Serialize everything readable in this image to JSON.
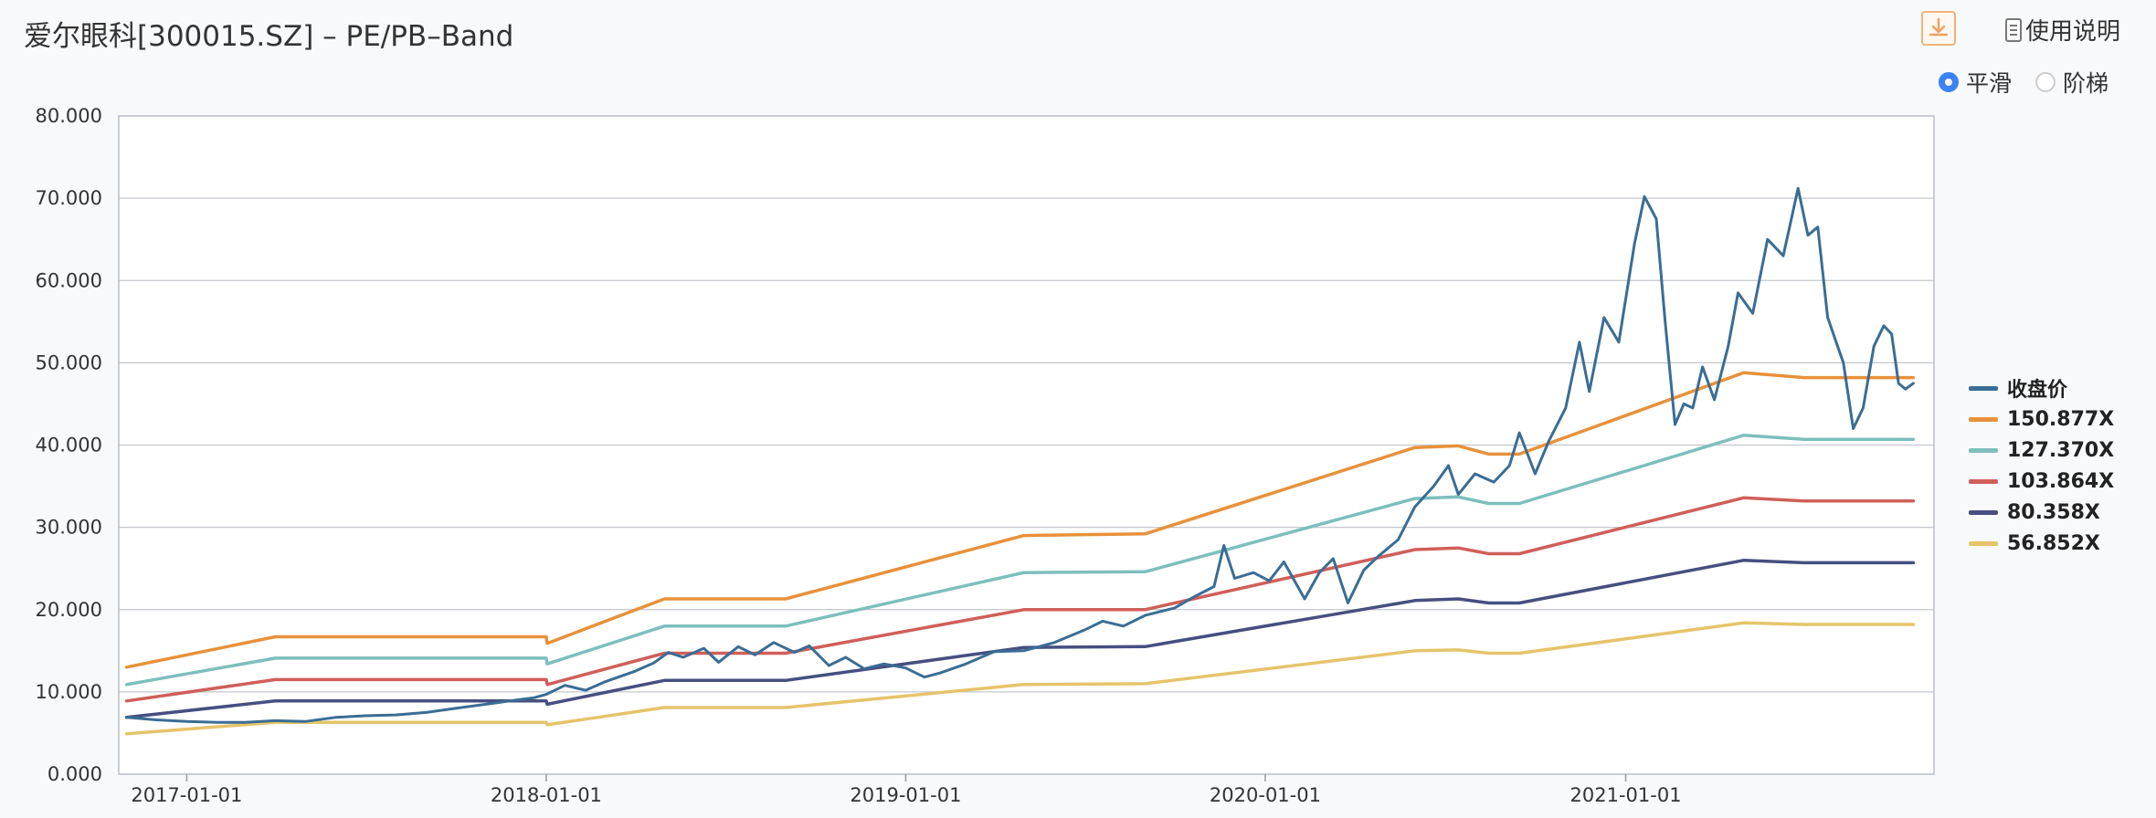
{
  "header": {
    "title": "爱尔眼科[300015.SZ] – PE/PB–Band",
    "download_icon": "download-icon",
    "help_icon": "document-icon",
    "help_label": "使用说明"
  },
  "smoothing": {
    "options": [
      "平滑",
      "阶梯"
    ],
    "selected": "平滑"
  },
  "chart_data": {
    "type": "line",
    "title": "",
    "xlabel": "",
    "ylabel": "",
    "x_range": [
      "2016-10-24",
      "2021-11-10"
    ],
    "ylim": [
      0,
      80
    ],
    "y_ticks": [
      "0.000",
      "10.000",
      "20.000",
      "30.000",
      "40.000",
      "50.000",
      "60.000",
      "70.000",
      "80.000"
    ],
    "x_ticks": [
      "2017-01-01",
      "2018-01-01",
      "2019-01-01",
      "2020-01-01",
      "2021-01-01"
    ],
    "grid": "horizontal",
    "legend_position": "right",
    "series": [
      {
        "name": "收盘价",
        "color": "#3a6d94",
        "points": [
          [
            "2016-11-01",
            6.9
          ],
          [
            "2016-12-01",
            6.6
          ],
          [
            "2017-01-01",
            6.4
          ],
          [
            "2017-02-01",
            6.3
          ],
          [
            "2017-03-01",
            6.3
          ],
          [
            "2017-04-01",
            6.5
          ],
          [
            "2017-05-01",
            6.4
          ],
          [
            "2017-06-01",
            6.9
          ],
          [
            "2017-07-01",
            7.1
          ],
          [
            "2017-08-01",
            7.2
          ],
          [
            "2017-09-01",
            7.5
          ],
          [
            "2017-10-01",
            8.0
          ],
          [
            "2017-11-01",
            8.5
          ],
          [
            "2017-12-01",
            9.0
          ],
          [
            "2017-12-20",
            9.3
          ],
          [
            "2018-01-01",
            9.7
          ],
          [
            "2018-01-20",
            10.8
          ],
          [
            "2018-02-10",
            10.2
          ],
          [
            "2018-03-01",
            11.2
          ],
          [
            "2018-04-01",
            12.5
          ],
          [
            "2018-04-20",
            13.5
          ],
          [
            "2018-05-05",
            14.8
          ],
          [
            "2018-05-20",
            14.2
          ],
          [
            "2018-06-10",
            15.3
          ],
          [
            "2018-06-25",
            13.6
          ],
          [
            "2018-07-15",
            15.5
          ],
          [
            "2018-08-01",
            14.5
          ],
          [
            "2018-08-20",
            16.0
          ],
          [
            "2018-09-10",
            14.8
          ],
          [
            "2018-09-25",
            15.6
          ],
          [
            "2018-10-15",
            13.2
          ],
          [
            "2018-11-01",
            14.2
          ],
          [
            "2018-11-20",
            12.8
          ],
          [
            "2018-12-10",
            13.4
          ],
          [
            "2019-01-01",
            12.9
          ],
          [
            "2019-01-20",
            11.8
          ],
          [
            "2019-02-05",
            12.3
          ],
          [
            "2019-03-01",
            13.3
          ],
          [
            "2019-04-01",
            14.9
          ],
          [
            "2019-05-01",
            15.0
          ],
          [
            "2019-06-01",
            16.0
          ],
          [
            "2019-07-01",
            17.5
          ],
          [
            "2019-07-20",
            18.6
          ],
          [
            "2019-08-10",
            18.0
          ],
          [
            "2019-09-01",
            19.3
          ],
          [
            "2019-10-01",
            20.2
          ],
          [
            "2019-10-20",
            21.5
          ],
          [
            "2019-11-10",
            22.8
          ],
          [
            "2019-11-20",
            27.8
          ],
          [
            "2019-12-01",
            23.8
          ],
          [
            "2019-12-20",
            24.5
          ],
          [
            "2020-01-05",
            23.5
          ],
          [
            "2020-01-20",
            25.8
          ],
          [
            "2020-02-10",
            21.3
          ],
          [
            "2020-02-25",
            24.5
          ],
          [
            "2020-03-10",
            26.2
          ],
          [
            "2020-03-25",
            20.8
          ],
          [
            "2020-04-10",
            24.8
          ],
          [
            "2020-04-25",
            26.5
          ],
          [
            "2020-05-15",
            28.5
          ],
          [
            "2020-06-01",
            32.5
          ],
          [
            "2020-06-20",
            35.0
          ],
          [
            "2020-07-05",
            37.5
          ],
          [
            "2020-07-15",
            34.0
          ],
          [
            "2020-08-01",
            36.5
          ],
          [
            "2020-08-20",
            35.5
          ],
          [
            "2020-09-05",
            37.5
          ],
          [
            "2020-09-15",
            41.5
          ],
          [
            "2020-10-01",
            36.5
          ],
          [
            "2020-10-15",
            40.5
          ],
          [
            "2020-11-01",
            44.5
          ],
          [
            "2020-11-15",
            52.5
          ],
          [
            "2020-11-25",
            46.5
          ],
          [
            "2020-12-10",
            55.5
          ],
          [
            "2020-12-25",
            52.5
          ],
          [
            "2021-01-10",
            64.5
          ],
          [
            "2021-01-20",
            70.2
          ],
          [
            "2021-02-01",
            67.5
          ],
          [
            "2021-02-10",
            55.0
          ],
          [
            "2021-02-20",
            42.5
          ],
          [
            "2021-03-01",
            45.0
          ],
          [
            "2021-03-10",
            44.5
          ],
          [
            "2021-03-20",
            49.5
          ],
          [
            "2021-04-01",
            45.5
          ],
          [
            "2021-04-15",
            52.0
          ],
          [
            "2021-04-25",
            58.5
          ],
          [
            "2021-05-10",
            56.0
          ],
          [
            "2021-05-25",
            65.0
          ],
          [
            "2021-06-10",
            63.0
          ],
          [
            "2021-06-25",
            71.2
          ],
          [
            "2021-07-05",
            65.5
          ],
          [
            "2021-07-15",
            66.5
          ],
          [
            "2021-07-25",
            55.5
          ],
          [
            "2021-08-10",
            50.0
          ],
          [
            "2021-08-20",
            42.0
          ],
          [
            "2021-08-30",
            44.5
          ],
          [
            "2021-09-10",
            52.0
          ],
          [
            "2021-09-20",
            54.5
          ],
          [
            "2021-09-28",
            53.5
          ],
          [
            "2021-10-05",
            47.5
          ],
          [
            "2021-10-12",
            46.8
          ],
          [
            "2021-10-20",
            47.5
          ]
        ]
      },
      {
        "name": "150.877X",
        "color": "#e8913a",
        "points": [
          [
            "2016-11-01",
            13.0
          ],
          [
            "2017-04-01",
            16.7
          ],
          [
            "2018-01-01",
            16.7
          ],
          [
            "2018-01-02",
            15.9
          ],
          [
            "2018-05-01",
            21.3
          ],
          [
            "2018-09-01",
            21.3
          ],
          [
            "2019-05-01",
            29.0
          ],
          [
            "2019-09-01",
            29.2
          ],
          [
            "2020-06-01",
            39.7
          ],
          [
            "2020-07-15",
            39.9
          ],
          [
            "2020-08-15",
            38.9
          ],
          [
            "2020-09-15",
            38.9
          ],
          [
            "2021-05-01",
            48.8
          ],
          [
            "2021-07-01",
            48.2
          ],
          [
            "2021-10-20",
            48.2
          ]
        ]
      },
      {
        "name": "127.370X",
        "color": "#7cbfbd",
        "points": [
          [
            "2016-11-01",
            10.9
          ],
          [
            "2017-04-01",
            14.1
          ],
          [
            "2018-01-01",
            14.1
          ],
          [
            "2018-01-02",
            13.4
          ],
          [
            "2018-05-01",
            18.0
          ],
          [
            "2018-09-01",
            18.0
          ],
          [
            "2019-05-01",
            24.5
          ],
          [
            "2019-09-01",
            24.6
          ],
          [
            "2020-06-01",
            33.5
          ],
          [
            "2020-07-15",
            33.7
          ],
          [
            "2020-08-15",
            32.9
          ],
          [
            "2020-09-15",
            32.9
          ],
          [
            "2021-05-01",
            41.2
          ],
          [
            "2021-07-01",
            40.7
          ],
          [
            "2021-10-20",
            40.7
          ]
        ]
      },
      {
        "name": "103.864X",
        "color": "#cf5f5a",
        "points": [
          [
            "2016-11-01",
            8.9
          ],
          [
            "2017-04-01",
            11.5
          ],
          [
            "2018-01-01",
            11.5
          ],
          [
            "2018-01-02",
            10.9
          ],
          [
            "2018-05-01",
            14.7
          ],
          [
            "2018-09-01",
            14.7
          ],
          [
            "2019-05-01",
            20.0
          ],
          [
            "2019-09-01",
            20.0
          ],
          [
            "2020-06-01",
            27.3
          ],
          [
            "2020-07-15",
            27.5
          ],
          [
            "2020-08-15",
            26.8
          ],
          [
            "2020-09-15",
            26.8
          ],
          [
            "2021-05-01",
            33.6
          ],
          [
            "2021-07-01",
            33.2
          ],
          [
            "2021-10-20",
            33.2
          ]
        ]
      },
      {
        "name": "80.358X",
        "color": "#464f80",
        "points": [
          [
            "2016-11-01",
            6.9
          ],
          [
            "2017-04-01",
            8.9
          ],
          [
            "2018-01-01",
            8.9
          ],
          [
            "2018-01-02",
            8.5
          ],
          [
            "2018-05-01",
            11.4
          ],
          [
            "2018-09-01",
            11.4
          ],
          [
            "2019-05-01",
            15.4
          ],
          [
            "2019-09-01",
            15.5
          ],
          [
            "2020-06-01",
            21.1
          ],
          [
            "2020-07-15",
            21.3
          ],
          [
            "2020-08-15",
            20.8
          ],
          [
            "2020-09-15",
            20.8
          ],
          [
            "2021-05-01",
            26.0
          ],
          [
            "2021-07-01",
            25.7
          ],
          [
            "2021-10-20",
            25.7
          ]
        ]
      },
      {
        "name": "56.852X",
        "color": "#e5c46a",
        "points": [
          [
            "2016-11-01",
            4.9
          ],
          [
            "2017-04-01",
            6.3
          ],
          [
            "2018-01-01",
            6.3
          ],
          [
            "2018-01-02",
            6.0
          ],
          [
            "2018-05-01",
            8.1
          ],
          [
            "2018-09-01",
            8.1
          ],
          [
            "2019-05-01",
            10.9
          ],
          [
            "2019-09-01",
            11.0
          ],
          [
            "2020-06-01",
            15.0
          ],
          [
            "2020-07-15",
            15.1
          ],
          [
            "2020-08-15",
            14.7
          ],
          [
            "2020-09-15",
            14.7
          ],
          [
            "2021-05-01",
            18.4
          ],
          [
            "2021-07-01",
            18.2
          ],
          [
            "2021-10-20",
            18.2
          ]
        ]
      }
    ]
  }
}
